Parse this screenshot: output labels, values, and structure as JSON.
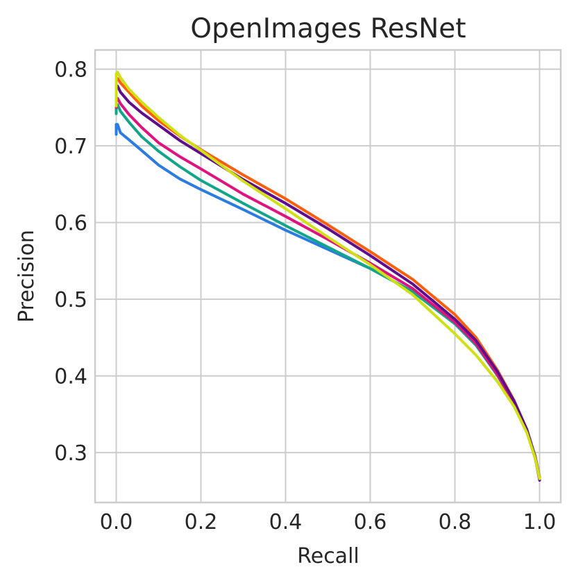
{
  "chart_data": {
    "type": "line",
    "title": "OpenImages ResNet",
    "xlabel": "Recall",
    "ylabel": "Precision",
    "xlim": [
      -0.05,
      1.05
    ],
    "ylim": [
      0.235,
      0.825
    ],
    "xticks": [
      0.0,
      0.2,
      0.4,
      0.6,
      0.8,
      1.0
    ],
    "xtick_labels": [
      "0.0",
      "0.2",
      "0.4",
      "0.6",
      "0.8",
      "1.0"
    ],
    "yticks": [
      0.3,
      0.4,
      0.5,
      0.6,
      0.7,
      0.8
    ],
    "ytick_labels": [
      "0.3",
      "0.4",
      "0.5",
      "0.6",
      "0.7",
      "0.8"
    ],
    "grid": true,
    "legend": false,
    "series": [
      {
        "color": "#2a7ce0",
        "x": [
          0.0,
          0.0,
          0.003,
          0.01,
          0.03,
          0.06,
          0.1,
          0.15,
          0.2,
          0.3,
          0.4,
          0.5,
          0.6,
          0.7,
          0.8,
          0.85,
          0.9,
          0.94,
          0.97,
          0.99,
          1.0
        ],
        "y": [
          0.715,
          0.728,
          0.728,
          0.717,
          0.708,
          0.694,
          0.675,
          0.657,
          0.643,
          0.617,
          0.59,
          0.565,
          0.54,
          0.51,
          0.468,
          0.44,
          0.402,
          0.366,
          0.33,
          0.295,
          0.268
        ]
      },
      {
        "color": "#12a58a",
        "x": [
          0.0,
          0.0,
          0.003,
          0.01,
          0.03,
          0.06,
          0.1,
          0.15,
          0.2,
          0.3,
          0.4,
          0.5,
          0.6,
          0.7,
          0.8,
          0.85,
          0.9,
          0.94,
          0.97,
          0.99,
          1.0
        ],
        "y": [
          0.742,
          0.754,
          0.754,
          0.745,
          0.731,
          0.712,
          0.693,
          0.673,
          0.655,
          0.625,
          0.596,
          0.568,
          0.54,
          0.51,
          0.468,
          0.44,
          0.401,
          0.364,
          0.328,
          0.292,
          0.266
        ]
      },
      {
        "color": "#e0127f",
        "x": [
          0.0,
          0.0,
          0.003,
          0.01,
          0.03,
          0.06,
          0.1,
          0.15,
          0.2,
          0.3,
          0.4,
          0.5,
          0.6,
          0.7,
          0.8,
          0.85,
          0.9,
          0.94,
          0.97,
          0.99,
          1.0
        ],
        "y": [
          0.75,
          0.762,
          0.762,
          0.755,
          0.741,
          0.724,
          0.704,
          0.686,
          0.67,
          0.637,
          0.608,
          0.578,
          0.547,
          0.514,
          0.47,
          0.442,
          0.402,
          0.364,
          0.328,
          0.292,
          0.266
        ]
      },
      {
        "color": "#ff5e0e",
        "x": [
          0.0,
          0.0,
          0.003,
          0.01,
          0.03,
          0.06,
          0.1,
          0.15,
          0.2,
          0.3,
          0.4,
          0.5,
          0.6,
          0.7,
          0.8,
          0.85,
          0.9,
          0.94,
          0.97,
          0.99,
          1.0
        ],
        "y": [
          0.772,
          0.786,
          0.788,
          0.782,
          0.77,
          0.752,
          0.733,
          0.713,
          0.695,
          0.662,
          0.631,
          0.597,
          0.562,
          0.526,
          0.48,
          0.45,
          0.408,
          0.368,
          0.33,
          0.294,
          0.267
        ]
      },
      {
        "color": "#5e0d8b",
        "x": [
          0.0,
          0.0,
          0.003,
          0.01,
          0.03,
          0.06,
          0.1,
          0.15,
          0.2,
          0.3,
          0.4,
          0.5,
          0.6,
          0.7,
          0.8,
          0.85,
          0.9,
          0.94,
          0.97,
          0.99,
          1.0
        ],
        "y": [
          0.763,
          0.778,
          0.778,
          0.77,
          0.757,
          0.743,
          0.727,
          0.707,
          0.69,
          0.656,
          0.625,
          0.592,
          0.557,
          0.52,
          0.474,
          0.446,
          0.406,
          0.367,
          0.33,
          0.293,
          0.264
        ]
      },
      {
        "color": "#cfe014",
        "x": [
          0.0,
          0.0,
          0.003,
          0.01,
          0.03,
          0.06,
          0.1,
          0.15,
          0.2,
          0.3,
          0.4,
          0.5,
          0.6,
          0.7,
          0.8,
          0.85,
          0.9,
          0.94,
          0.97,
          0.99,
          1.0
        ],
        "y": [
          0.752,
          0.794,
          0.796,
          0.789,
          0.774,
          0.757,
          0.737,
          0.714,
          0.694,
          0.654,
          0.618,
          0.581,
          0.545,
          0.506,
          0.455,
          0.427,
          0.393,
          0.36,
          0.326,
          0.292,
          0.266
        ]
      }
    ]
  }
}
